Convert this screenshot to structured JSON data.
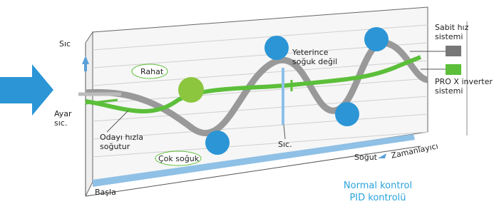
{
  "axis_label": "Sıc",
  "set_temp": [
    "Ayar",
    "sıc."
  ],
  "comfortable": "Rahat",
  "not_cold_enough": [
    "Yeterince",
    "soğuk değil"
  ],
  "legend": {
    "fixed_speed": [
      "Sabit hız",
      "sistemi"
    ],
    "inverter": [
      "PRO X inverter",
      "sistemi"
    ]
  },
  "fast_cool": [
    "Odayı hızla",
    "soğutur"
  ],
  "too_cold": "Çok soğuk",
  "temp": "Sıc.",
  "cool": "Soğut",
  "timer": "Zamanlayıcı",
  "start": "Başla",
  "footer": [
    "Normal kontrol",
    "PID kontrolü"
  ]
}
